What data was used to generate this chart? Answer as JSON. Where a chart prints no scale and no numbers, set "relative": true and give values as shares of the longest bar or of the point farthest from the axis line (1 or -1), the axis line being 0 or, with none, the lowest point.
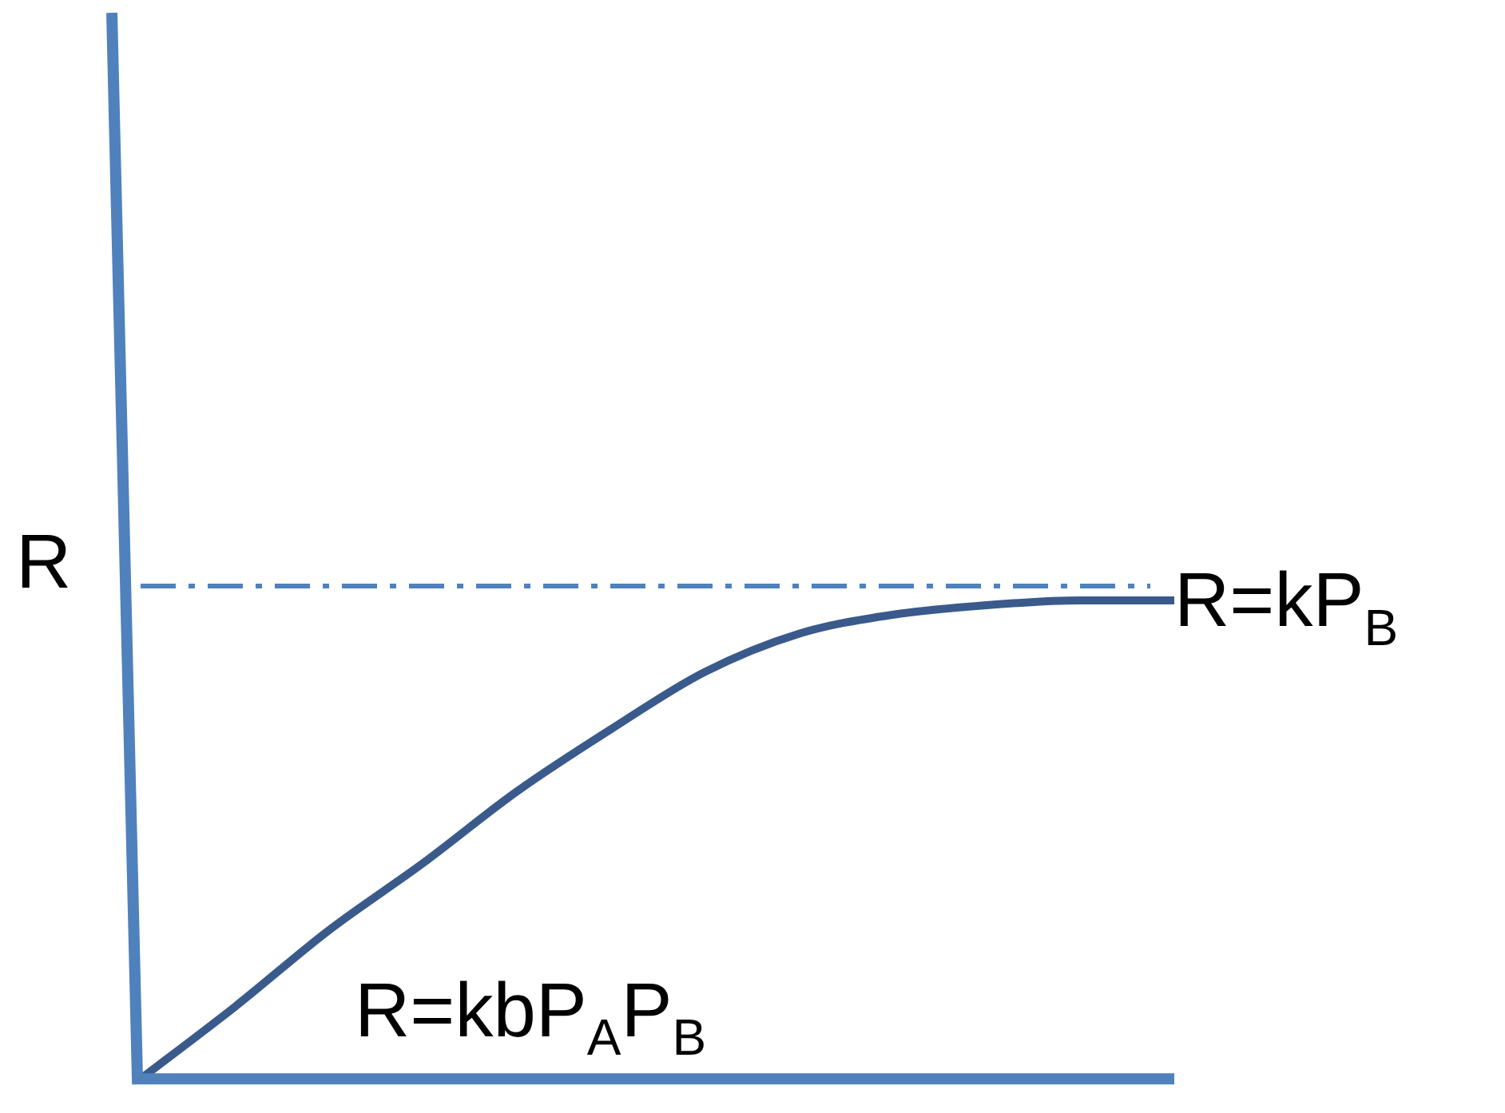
{
  "chart_data": {
    "type": "line",
    "relative": true,
    "ylabel": "R",
    "categories": [
      null,
      null,
      null,
      null,
      null,
      null,
      null,
      null,
      null,
      null,
      null,
      null
    ],
    "series": [
      {
        "color": "#3a5a8c",
        "values": [
          0,
          0.15,
          0.31,
          0.45,
          0.6,
          0.73,
          0.85,
          0.93,
          0.97,
          0.99,
          1,
          1
        ]
      }
    ],
    "ref_lines": [
      {
        "axis": "y",
        "value": 1.03,
        "label": "R=kP$_{B}$",
        "color": "#4f81bd",
        "line_style": "dashed"
      }
    ],
    "annotations": [
      "R=kbP$_{A}$P$_{B}$"
    ],
    "grid": false,
    "legend": false,
    "marker": "none",
    "line_style": "solid"
  }
}
